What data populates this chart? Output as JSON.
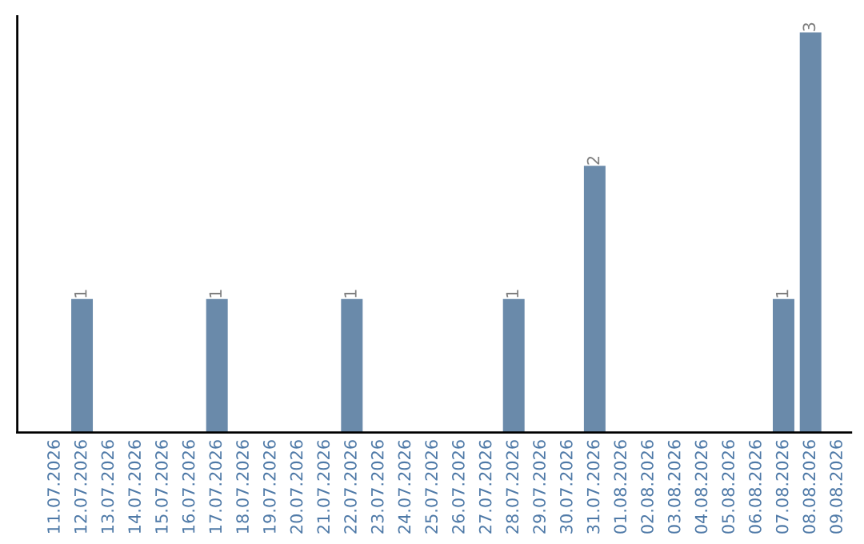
{
  "chart_data": {
    "type": "bar",
    "categories": [
      "11.07.2026",
      "12.07.2026",
      "13.07.2026",
      "14.07.2026",
      "15.07.2026",
      "16.07.2026",
      "17.07.2026",
      "18.07.2026",
      "19.07.2026",
      "20.07.2026",
      "21.07.2026",
      "22.07.2026",
      "23.07.2026",
      "24.07.2026",
      "25.07.2026",
      "26.07.2026",
      "27.07.2026",
      "28.07.2026",
      "29.07.2026",
      "30.07.2026",
      "31.07.2026",
      "01.08.2026",
      "02.08.2026",
      "03.08.2026",
      "04.08.2026",
      "05.08.2026",
      "06.08.2026",
      "07.08.2026",
      "08.08.2026",
      "09.08.2026"
    ],
    "values": [
      0,
      1,
      0,
      0,
      0,
      0,
      1,
      0,
      0,
      0,
      0,
      1,
      0,
      0,
      0,
      0,
      0,
      1,
      0,
      0,
      2,
      0,
      0,
      0,
      0,
      0,
      0,
      1,
      3,
      0
    ],
    "value_labels": [
      null,
      "1",
      null,
      null,
      null,
      null,
      "1",
      null,
      null,
      null,
      null,
      "1",
      null,
      null,
      null,
      null,
      null,
      "1",
      null,
      null,
      "2",
      null,
      null,
      null,
      null,
      null,
      null,
      "1",
      "3",
      null
    ],
    "color": "#6a8aaa",
    "grid": false,
    "legend": false
  }
}
